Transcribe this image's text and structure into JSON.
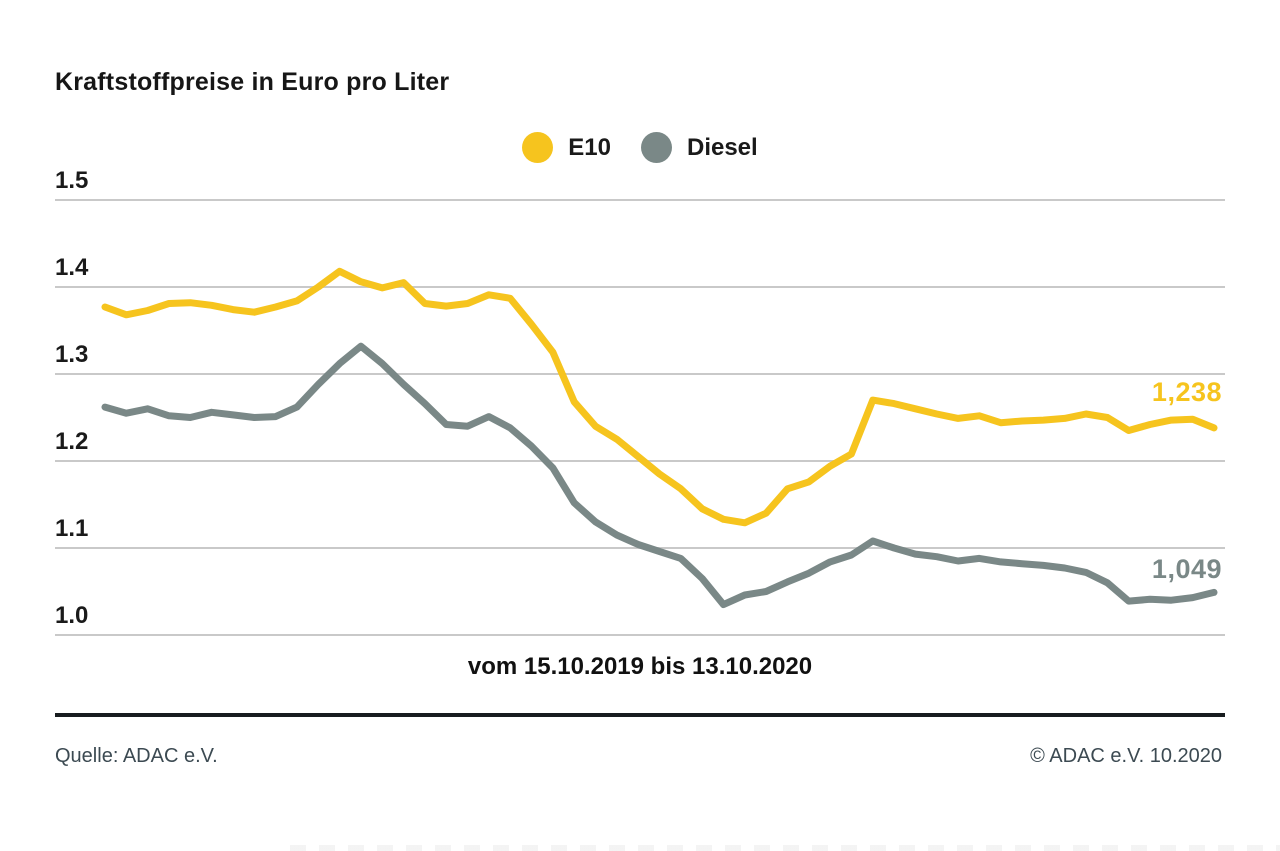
{
  "title": "Kraftstoffpreise in Euro pro Liter",
  "legend": {
    "items": [
      {
        "label": "E10",
        "color": "#F6C41E"
      },
      {
        "label": "Diesel",
        "color": "#7A8887"
      }
    ]
  },
  "chart_data": {
    "type": "line",
    "title": "Kraftstoffpreise in Euro pro Liter",
    "x_caption": "vom 15.10.2019 bis 13.10.2020",
    "y_ticks": [
      "1.5",
      "1.4",
      "1.3",
      "1.2",
      "1.1",
      "1.0"
    ],
    "y_range": [
      1.0,
      1.5
    ],
    "grid": "horizontal",
    "legend_position": "top-center",
    "series": [
      {
        "name": "E10",
        "color": "#F6C41E",
        "end_label": "1,238",
        "end_value": 1.238,
        "values": [
          1.377,
          1.368,
          1.373,
          1.381,
          1.382,
          1.379,
          1.374,
          1.371,
          1.377,
          1.384,
          1.4,
          1.418,
          1.406,
          1.399,
          1.405,
          1.381,
          1.378,
          1.381,
          1.391,
          1.387,
          1.357,
          1.325,
          1.268,
          1.24,
          1.225,
          1.205,
          1.185,
          1.168,
          1.145,
          1.133,
          1.129,
          1.14,
          1.168,
          1.176,
          1.194,
          1.208,
          1.27,
          1.266,
          1.26,
          1.254,
          1.249,
          1.252,
          1.244,
          1.246,
          1.247,
          1.249,
          1.254,
          1.25,
          1.235,
          1.242,
          1.247,
          1.248,
          1.238
        ]
      },
      {
        "name": "Diesel",
        "color": "#7A8887",
        "end_label": "1,049",
        "end_value": 1.049,
        "values": [
          1.262,
          1.255,
          1.26,
          1.252,
          1.25,
          1.256,
          1.253,
          1.25,
          1.251,
          1.262,
          1.288,
          1.312,
          1.332,
          1.312,
          1.288,
          1.266,
          1.242,
          1.24,
          1.251,
          1.238,
          1.217,
          1.192,
          1.152,
          1.13,
          1.115,
          1.104,
          1.096,
          1.088,
          1.065,
          1.035,
          1.046,
          1.05,
          1.061,
          1.071,
          1.084,
          1.092,
          1.108,
          1.1,
          1.093,
          1.09,
          1.085,
          1.088,
          1.084,
          1.082,
          1.08,
          1.077,
          1.072,
          1.06,
          1.039,
          1.041,
          1.04,
          1.043,
          1.049
        ]
      }
    ]
  },
  "footer": {
    "source": "Quelle: ADAC e.V.",
    "copyright": "© ADAC e.V. 10.2020"
  }
}
